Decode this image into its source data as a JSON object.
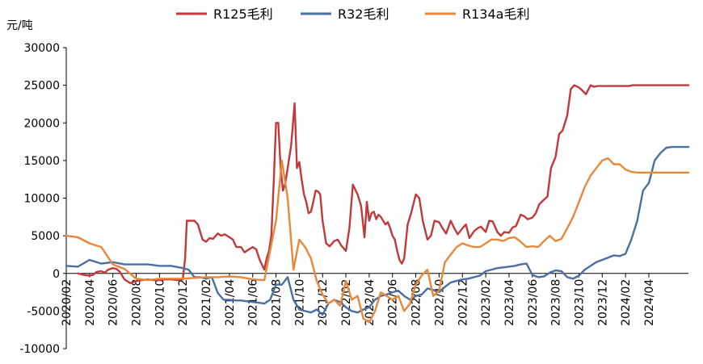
{
  "chart_data": {
    "type": "line",
    "title": "",
    "xlabel": "",
    "ylabel": "元/吨",
    "ylim": [
      -10000,
      30000
    ],
    "yticks": [
      30000,
      25000,
      20000,
      15000,
      10000,
      5000,
      0,
      -5000,
      -10000
    ],
    "ytick_labels": [
      "30000",
      "25000",
      "20000",
      "15000",
      "10000",
      "5000",
      "0",
      "-5000",
      "-10000"
    ],
    "x_start": "2020-02",
    "x_end": "2024-05",
    "x_tick_labels": [
      "2020/02",
      "2020/04",
      "2020/06",
      "2020/08",
      "2020/10",
      "2020/12",
      "2021/02",
      "2021/04",
      "2021/06",
      "2021/08",
      "2021/10",
      "2021/12",
      "2022/02",
      "2022/04",
      "2022/06",
      "2022/08",
      "2022/10",
      "2022/12",
      "2023/02",
      "2023/04",
      "2023/06",
      "2023/08",
      "2023/10",
      "2023/12",
      "2024/02",
      "2024/04"
    ],
    "legend_position": "top",
    "series": [
      {
        "name": "R125毛利",
        "color": "#C0393B",
        "x": [
          0,
          0.3,
          0.6,
          1.0,
          1.5,
          2.0,
          2.3,
          2.6,
          3.0,
          3.3,
          3.6,
          4.0,
          4.3,
          4.6,
          5.0,
          5.5,
          6.0,
          6.5,
          7.0,
          7.5,
          8.0,
          8.5,
          9.0,
          9.5,
          10.0,
          10.2,
          10.35,
          10.5,
          10.7,
          11.0,
          11.3,
          11.5,
          11.7,
          12.0,
          12.3,
          12.6,
          13.0,
          13.3,
          13.6,
          14.0,
          14.3,
          14.6,
          15.0,
          15.3,
          15.6,
          16.0,
          16.3,
          16.6,
          17.0,
          17.2,
          17.4,
          17.6,
          17.8,
          18.0,
          18.2,
          18.4,
          18.6,
          18.8,
          19.0,
          19.3,
          19.6,
          19.8,
          20.0,
          20.2,
          20.4,
          20.6,
          20.8,
          21.0,
          21.2,
          21.4,
          21.6,
          21.8,
          22.0,
          22.3,
          22.6,
          23.0,
          23.3,
          23.6,
          24.0,
          24.3,
          24.6,
          25.0,
          25.3,
          25.6,
          25.8,
          26.0,
          26.2,
          26.4,
          26.6,
          26.8,
          27.0,
          27.2,
          27.4,
          27.6,
          27.8,
          28.0,
          28.2,
          28.4,
          28.6,
          28.8,
          29.0,
          29.3,
          29.6,
          30.0,
          30.3,
          30.6,
          31.0,
          31.3,
          31.6,
          32.0,
          32.3,
          32.6,
          33.0,
          33.3,
          33.6,
          34.0,
          34.3,
          34.6,
          35.0,
          35.3,
          35.6,
          36.0,
          36.3,
          36.6,
          37.0,
          37.3,
          37.6,
          38.0,
          38.3,
          38.6,
          39.0,
          39.3,
          39.6,
          40.0,
          40.3,
          40.6,
          41.0,
          41.3,
          41.6,
          42.0,
          42.3,
          42.6,
          43.0,
          43.3,
          43.6,
          44.0,
          44.3,
          44.6,
          45.0,
          45.3,
          45.6,
          46.0,
          46.3,
          46.6,
          47.0,
          47.3,
          47.6,
          48.0,
          48.3,
          48.6,
          49.0,
          49.3,
          49.6,
          50.0,
          50.3,
          50.6,
          51.0,
          51.3,
          51.6,
          52.0,
          52.3,
          52.6,
          53.0,
          53.4
        ],
        "values": [
          null,
          null,
          null,
          0,
          -200,
          -300,
          -200,
          200,
          300,
          100,
          500,
          700,
          600,
          200,
          -800,
          -1300,
          -1000,
          -900,
          -800,
          -900,
          -900,
          -800,
          -800,
          -900,
          -800,
          2000,
          7000,
          7000,
          7000,
          7000,
          6500,
          5500,
          4500,
          4200,
          4700,
          4600,
          5300,
          5000,
          5200,
          4800,
          4500,
          3500,
          3500,
          2800,
          3100,
          3500,
          3200,
          1800,
          500,
          2000,
          3000,
          5000,
          12000,
          20000,
          20000,
          14000,
          11000,
          12000,
          14000,
          17000,
          22600,
          14000,
          14800,
          12500,
          10500,
          9500,
          8000,
          8200,
          9500,
          11000,
          10900,
          10500,
          7000,
          4000,
          3600,
          4300,
          4500,
          3700,
          3000,
          6000,
          11800,
          10500,
          9000,
          4800,
          9500,
          7000,
          8000,
          8200,
          7200,
          7800,
          7500,
          7000,
          6500,
          6800,
          6000,
          5000,
          4500,
          3000,
          1800,
          1300,
          2000,
          6500,
          8000,
          10500,
          10000,
          7000,
          4500,
          5000,
          7000,
          6800,
          6000,
          5300,
          7000,
          6000,
          5200,
          6000,
          6500,
          4700,
          5600,
          6000,
          6200,
          5500,
          7000,
          6900,
          5500,
          5000,
          5500,
          5400,
          6100,
          6300,
          7800,
          7600,
          7200,
          7400,
          8000,
          9200,
          9800,
          10200,
          14000,
          15500,
          18500,
          19000,
          21000,
          24500,
          25000,
          24700,
          24300,
          23800,
          25000,
          24800,
          24900,
          24900,
          24900,
          24900,
          24900,
          24900,
          24900,
          24900,
          24900,
          25000,
          25000,
          25000,
          25000,
          25000,
          25000,
          25000,
          25000,
          25000,
          25000,
          25000,
          25000,
          25000,
          25000,
          25000
        ]
      },
      {
        "name": "R32毛利",
        "color": "#4A6FA5",
        "x": [
          0,
          1,
          2,
          3,
          4,
          5,
          6,
          7,
          8,
          9,
          10,
          10.5,
          11,
          11.5,
          12,
          12.5,
          13,
          13.5,
          14,
          14.5,
          15,
          15.5,
          16,
          16.5,
          17,
          17.5,
          18,
          18.5,
          19,
          19.5,
          20,
          20.5,
          21,
          21.5,
          22,
          22.5,
          23,
          23.5,
          24,
          24.5,
          25,
          25.5,
          26,
          26.5,
          27,
          27.5,
          28,
          28.5,
          29,
          29.5,
          30,
          30.5,
          31,
          31.5,
          32,
          32.5,
          33,
          33.5,
          34,
          34.5,
          35,
          35.5,
          36,
          36.5,
          37,
          37.5,
          38,
          38.5,
          39,
          39.5,
          40,
          40.5,
          41,
          41.5,
          42,
          42.5,
          43,
          43.5,
          44,
          44.5,
          45,
          45.5,
          46,
          46.5,
          47,
          47.5,
          48,
          48.5,
          49,
          49.5,
          50,
          50.5,
          51,
          51.5,
          52,
          52.5,
          53,
          53.4
        ],
        "values": [
          1000,
          900,
          1800,
          1300,
          1500,
          1200,
          1200,
          1200,
          1000,
          1000,
          700,
          500,
          -500,
          -500,
          -700,
          -500,
          -2600,
          -3500,
          -3500,
          -3600,
          -3600,
          -3700,
          -3800,
          -3900,
          -4000,
          -3500,
          -1500,
          -1500,
          -500,
          -3500,
          -4800,
          -5000,
          -5200,
          -4800,
          -5500,
          -4000,
          -3500,
          -3800,
          -4500,
          -5000,
          -5200,
          -4800,
          -4500,
          -3500,
          -3000,
          -2800,
          -2500,
          -2300,
          -3000,
          -3500,
          -3000,
          -2800,
          -2000,
          -2200,
          -2500,
          -1800,
          -1200,
          -1000,
          -800,
          -700,
          -500,
          -300,
          300,
          500,
          700,
          800,
          900,
          1000,
          1200,
          1300,
          -200,
          -500,
          -400,
          100,
          400,
          300,
          -500,
          -700,
          -300,
          500,
          1000,
          1500,
          1800,
          2100,
          2400,
          2300,
          2600,
          4500,
          7000,
          11000,
          12000,
          15000,
          16000,
          16700,
          16800,
          16800,
          16800,
          16800
        ]
      },
      {
        "name": "R134a毛利",
        "color": "#E8883A",
        "x": [
          0,
          1,
          2,
          3,
          4,
          5,
          6,
          7,
          8,
          9,
          10,
          11,
          12,
          13,
          14,
          15,
          16,
          17,
          18,
          18.5,
          19,
          19.5,
          20,
          20.5,
          21,
          21.5,
          22,
          22.5,
          23,
          23.5,
          24,
          24.5,
          25,
          25.5,
          26,
          26.5,
          27,
          27.5,
          28,
          28.5,
          29,
          29.5,
          30,
          30.5,
          31,
          31.5,
          32,
          32.5,
          33,
          33.5,
          34,
          34.5,
          35,
          35.5,
          36,
          36.5,
          37,
          37.5,
          38,
          38.5,
          39,
          39.5,
          40,
          40.5,
          41,
          41.5,
          42,
          42.5,
          43,
          43.5,
          44,
          44.5,
          45,
          45.5,
          46,
          46.5,
          47,
          47.5,
          48,
          48.5,
          49,
          49.5,
          50,
          50.5,
          51,
          51.5,
          52,
          52.5,
          53,
          53.4
        ],
        "values": [
          5000,
          4800,
          4000,
          3500,
          1200,
          600,
          -700,
          -900,
          -700,
          -700,
          -700,
          -600,
          -500,
          -500,
          -400,
          -500,
          -800,
          -900,
          7000,
          15000,
          10000,
          500,
          4500,
          3500,
          2000,
          -1000,
          -2800,
          -4000,
          -3500,
          -4300,
          -1000,
          -3500,
          -3000,
          -6000,
          -6500,
          -5000,
          -2500,
          -3000,
          -3500,
          -3000,
          -5000,
          -4000,
          -1500,
          -300,
          500,
          -3000,
          -2300,
          1500,
          2500,
          3500,
          4000,
          3700,
          3500,
          3500,
          4000,
          4500,
          4500,
          4300,
          4700,
          4800,
          4200,
          3500,
          3600,
          3500,
          4300,
          5000,
          4300,
          4600,
          6000,
          7500,
          9500,
          11500,
          13000,
          14000,
          15000,
          15300,
          14500,
          14500,
          13800,
          13500,
          13400,
          13400,
          13400,
          13400,
          13400,
          13400,
          13400,
          13400,
          13400,
          13400
        ]
      }
    ]
  }
}
